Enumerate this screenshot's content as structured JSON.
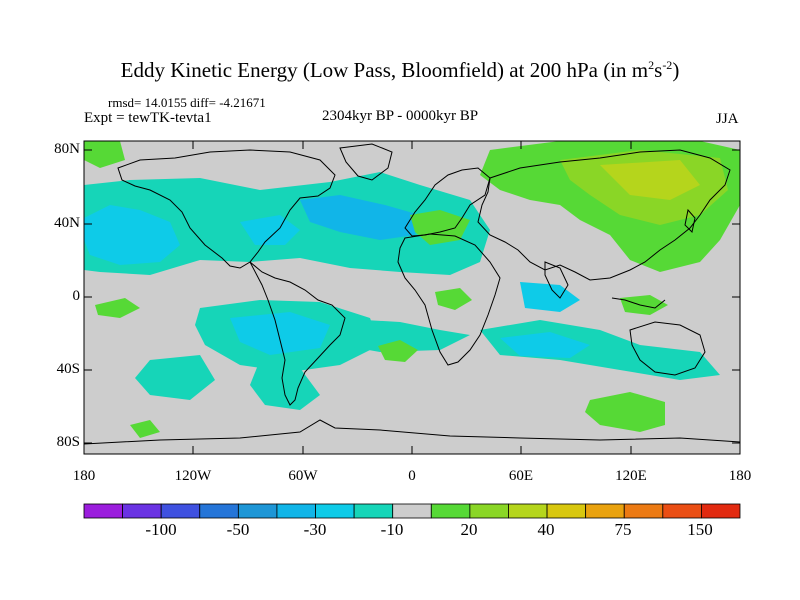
{
  "title": {
    "main": "Eddy Kinetic Energy (Low Pass, Bloomfield) at 200 hPa (in m",
    "unit_sup1": "2",
    "unit_mid": "s",
    "unit_sup2": "-2",
    "close": ")"
  },
  "stats": "rmsd= 14.0155 diff= -4.21671",
  "expt": "Expt = tewTK-tevta1",
  "period": "2304kyr BP - 0000kyr BP",
  "season": "JJA",
  "axes": {
    "lat_labels": [
      "80N",
      "40N",
      "0",
      "40S",
      "80S"
    ],
    "lon_labels": [
      "180",
      "120W",
      "60W",
      "0",
      "60E",
      "120E",
      "180"
    ]
  },
  "colorbar": {
    "colors": [
      "#9b1ddd",
      "#6a33e3",
      "#3f51e0",
      "#2575d8",
      "#1e96d6",
      "#11b5e8",
      "#0ecbe8",
      "#16d5b8",
      "#cdcdcd",
      "#56d936",
      "#8ad626",
      "#b5d51c",
      "#d8c70f",
      "#e9a20f",
      "#ec7a13",
      "#ea4e14",
      "#e22a10"
    ],
    "labels": [
      "-100",
      "-50",
      "-30",
      "-10",
      "20",
      "40",
      "75",
      "150"
    ]
  },
  "map_legend_colors": {
    "land_ocean_neutral": "#cdcdcd",
    "neg_light": "#16d5b8",
    "neg_medium": "#0ecbe8",
    "neg_strong": "#11b5e8",
    "pos_light": "#56d936",
    "pos_medium": "#8ad626",
    "pos_strong": "#b5d51c",
    "pos_max": "#d8c70f"
  }
}
